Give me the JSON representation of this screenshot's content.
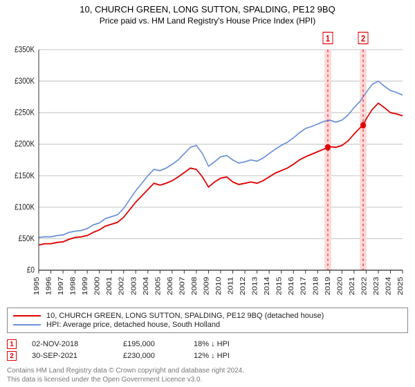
{
  "title": "10, CHURCH GREEN, LONG SUTTON, SPALDING, PE12 9BQ",
  "subtitle": "Price paid vs. HM Land Registry's House Price Index (HPI)",
  "chart": {
    "type": "line",
    "background_color": "#ffffff",
    "grid_color": "#cccccc",
    "axis_color": "#333333",
    "tick_fontsize": 10,
    "x": {
      "min_year": 1995,
      "max_year": 2025,
      "ticks": [
        1995,
        1996,
        1997,
        1998,
        1999,
        2000,
        2001,
        2002,
        2003,
        2004,
        2005,
        2006,
        2007,
        2008,
        2009,
        2010,
        2011,
        2012,
        2013,
        2014,
        2015,
        2016,
        2017,
        2018,
        2019,
        2020,
        2021,
        2022,
        2023,
        2024,
        2025
      ]
    },
    "y": {
      "min": 0,
      "max": 350000,
      "tick_step": 50000,
      "tick_prefix": "£",
      "tick_suffix": "K",
      "ticks": [
        0,
        50000,
        100000,
        150000,
        200000,
        250000,
        300000,
        350000
      ]
    },
    "series": [
      {
        "id": "price_paid",
        "label": "10, CHURCH GREEN, LONG SUTTON, SPALDING, PE12 9BQ (detached house)",
        "color": "#e00000",
        "line_width": 1.6,
        "data": [
          [
            1995.0,
            40000
          ],
          [
            1995.5,
            42000
          ],
          [
            1996.0,
            42000
          ],
          [
            1996.5,
            44000
          ],
          [
            1997.0,
            45000
          ],
          [
            1997.5,
            49000
          ],
          [
            1998.0,
            52000
          ],
          [
            1998.5,
            53000
          ],
          [
            1999.0,
            55000
          ],
          [
            1999.5,
            60000
          ],
          [
            2000.0,
            64000
          ],
          [
            2000.5,
            70000
          ],
          [
            2001.0,
            73000
          ],
          [
            2001.5,
            76000
          ],
          [
            2002.0,
            84000
          ],
          [
            2002.5,
            96000
          ],
          [
            2003.0,
            108000
          ],
          [
            2003.5,
            118000
          ],
          [
            2004.0,
            128000
          ],
          [
            2004.5,
            138000
          ],
          [
            2005.0,
            135000
          ],
          [
            2005.5,
            138000
          ],
          [
            2006.0,
            142000
          ],
          [
            2006.5,
            148000
          ],
          [
            2007.0,
            155000
          ],
          [
            2007.5,
            162000
          ],
          [
            2008.0,
            160000
          ],
          [
            2008.5,
            148000
          ],
          [
            2009.0,
            132000
          ],
          [
            2009.5,
            140000
          ],
          [
            2010.0,
            146000
          ],
          [
            2010.5,
            148000
          ],
          [
            2011.0,
            140000
          ],
          [
            2011.5,
            136000
          ],
          [
            2012.0,
            138000
          ],
          [
            2012.5,
            140000
          ],
          [
            2013.0,
            138000
          ],
          [
            2013.5,
            142000
          ],
          [
            2014.0,
            148000
          ],
          [
            2014.5,
            154000
          ],
          [
            2015.0,
            158000
          ],
          [
            2015.5,
            162000
          ],
          [
            2016.0,
            168000
          ],
          [
            2016.5,
            175000
          ],
          [
            2017.0,
            180000
          ],
          [
            2017.5,
            184000
          ],
          [
            2018.0,
            188000
          ],
          [
            2018.5,
            192000
          ],
          [
            2018.84,
            195000
          ],
          [
            2019.0,
            196000
          ],
          [
            2019.5,
            195000
          ],
          [
            2020.0,
            198000
          ],
          [
            2020.5,
            205000
          ],
          [
            2021.0,
            216000
          ],
          [
            2021.5,
            226000
          ],
          [
            2021.75,
            230000
          ],
          [
            2022.0,
            240000
          ],
          [
            2022.5,
            255000
          ],
          [
            2023.0,
            265000
          ],
          [
            2023.5,
            258000
          ],
          [
            2024.0,
            250000
          ],
          [
            2024.5,
            248000
          ],
          [
            2025.0,
            245000
          ]
        ]
      },
      {
        "id": "hpi",
        "label": "HPI: Average price, detached house, South Holland",
        "color": "#6a8fd8",
        "line_width": 1.5,
        "data": [
          [
            1995.0,
            52000
          ],
          [
            1995.5,
            53000
          ],
          [
            1996.0,
            53000
          ],
          [
            1996.5,
            55000
          ],
          [
            1997.0,
            56000
          ],
          [
            1997.5,
            60000
          ],
          [
            1998.0,
            62000
          ],
          [
            1998.5,
            63000
          ],
          [
            1999.0,
            66000
          ],
          [
            1999.5,
            72000
          ],
          [
            2000.0,
            75000
          ],
          [
            2000.5,
            82000
          ],
          [
            2001.0,
            85000
          ],
          [
            2001.5,
            88000
          ],
          [
            2002.0,
            98000
          ],
          [
            2002.5,
            112000
          ],
          [
            2003.0,
            126000
          ],
          [
            2003.5,
            138000
          ],
          [
            2004.0,
            150000
          ],
          [
            2004.5,
            160000
          ],
          [
            2005.0,
            158000
          ],
          [
            2005.5,
            162000
          ],
          [
            2006.0,
            168000
          ],
          [
            2006.5,
            175000
          ],
          [
            2007.0,
            185000
          ],
          [
            2007.5,
            195000
          ],
          [
            2008.0,
            198000
          ],
          [
            2008.5,
            185000
          ],
          [
            2009.0,
            165000
          ],
          [
            2009.5,
            172000
          ],
          [
            2010.0,
            180000
          ],
          [
            2010.5,
            182000
          ],
          [
            2011.0,
            175000
          ],
          [
            2011.5,
            170000
          ],
          [
            2012.0,
            172000
          ],
          [
            2012.5,
            175000
          ],
          [
            2013.0,
            173000
          ],
          [
            2013.5,
            178000
          ],
          [
            2014.0,
            185000
          ],
          [
            2014.5,
            192000
          ],
          [
            2015.0,
            198000
          ],
          [
            2015.5,
            203000
          ],
          [
            2016.0,
            210000
          ],
          [
            2016.5,
            218000
          ],
          [
            2017.0,
            225000
          ],
          [
            2017.5,
            228000
          ],
          [
            2018.0,
            232000
          ],
          [
            2018.5,
            236000
          ],
          [
            2019.0,
            238000
          ],
          [
            2019.5,
            235000
          ],
          [
            2020.0,
            238000
          ],
          [
            2020.5,
            246000
          ],
          [
            2021.0,
            258000
          ],
          [
            2021.5,
            268000
          ],
          [
            2022.0,
            282000
          ],
          [
            2022.5,
            295000
          ],
          [
            2023.0,
            300000
          ],
          [
            2023.5,
            292000
          ],
          [
            2024.0,
            285000
          ],
          [
            2024.5,
            282000
          ],
          [
            2025.0,
            278000
          ]
        ]
      }
    ],
    "sale_markers": [
      {
        "n": 1,
        "year": 2018.84,
        "price": 195000,
        "band_color": "#ffd9d9",
        "line_color": "#e00000"
      },
      {
        "n": 2,
        "year": 2021.75,
        "price": 230000,
        "band_color": "#ffd9d9",
        "line_color": "#e00000"
      }
    ],
    "marker_dot": {
      "radius": 4,
      "color": "#e00000"
    },
    "marker_label_fontsize": 11,
    "marker_label_border": "#e00000",
    "marker_label_row_y_offset": -14
  },
  "legend": {
    "border_color": "#888888",
    "fontsize": 11,
    "rows": [
      {
        "color": "#e00000",
        "text": "10, CHURCH GREEN, LONG SUTTON, SPALDING, PE12 9BQ (detached house)"
      },
      {
        "color": "#6a8fd8",
        "text": "HPI: Average price, detached house, South Holland"
      }
    ]
  },
  "sales_table": {
    "rows": [
      {
        "n": "1",
        "date": "02-NOV-2018",
        "price": "£195,000",
        "diff": "18% ↓ HPI"
      },
      {
        "n": "2",
        "date": "30-SEP-2021",
        "price": "£230,000",
        "diff": "12% ↓ HPI"
      }
    ]
  },
  "license": {
    "line1": "Contains HM Land Registry data © Crown copyright and database right 2024.",
    "line2": "This data is licensed under the Open Government Licence v3.0."
  }
}
